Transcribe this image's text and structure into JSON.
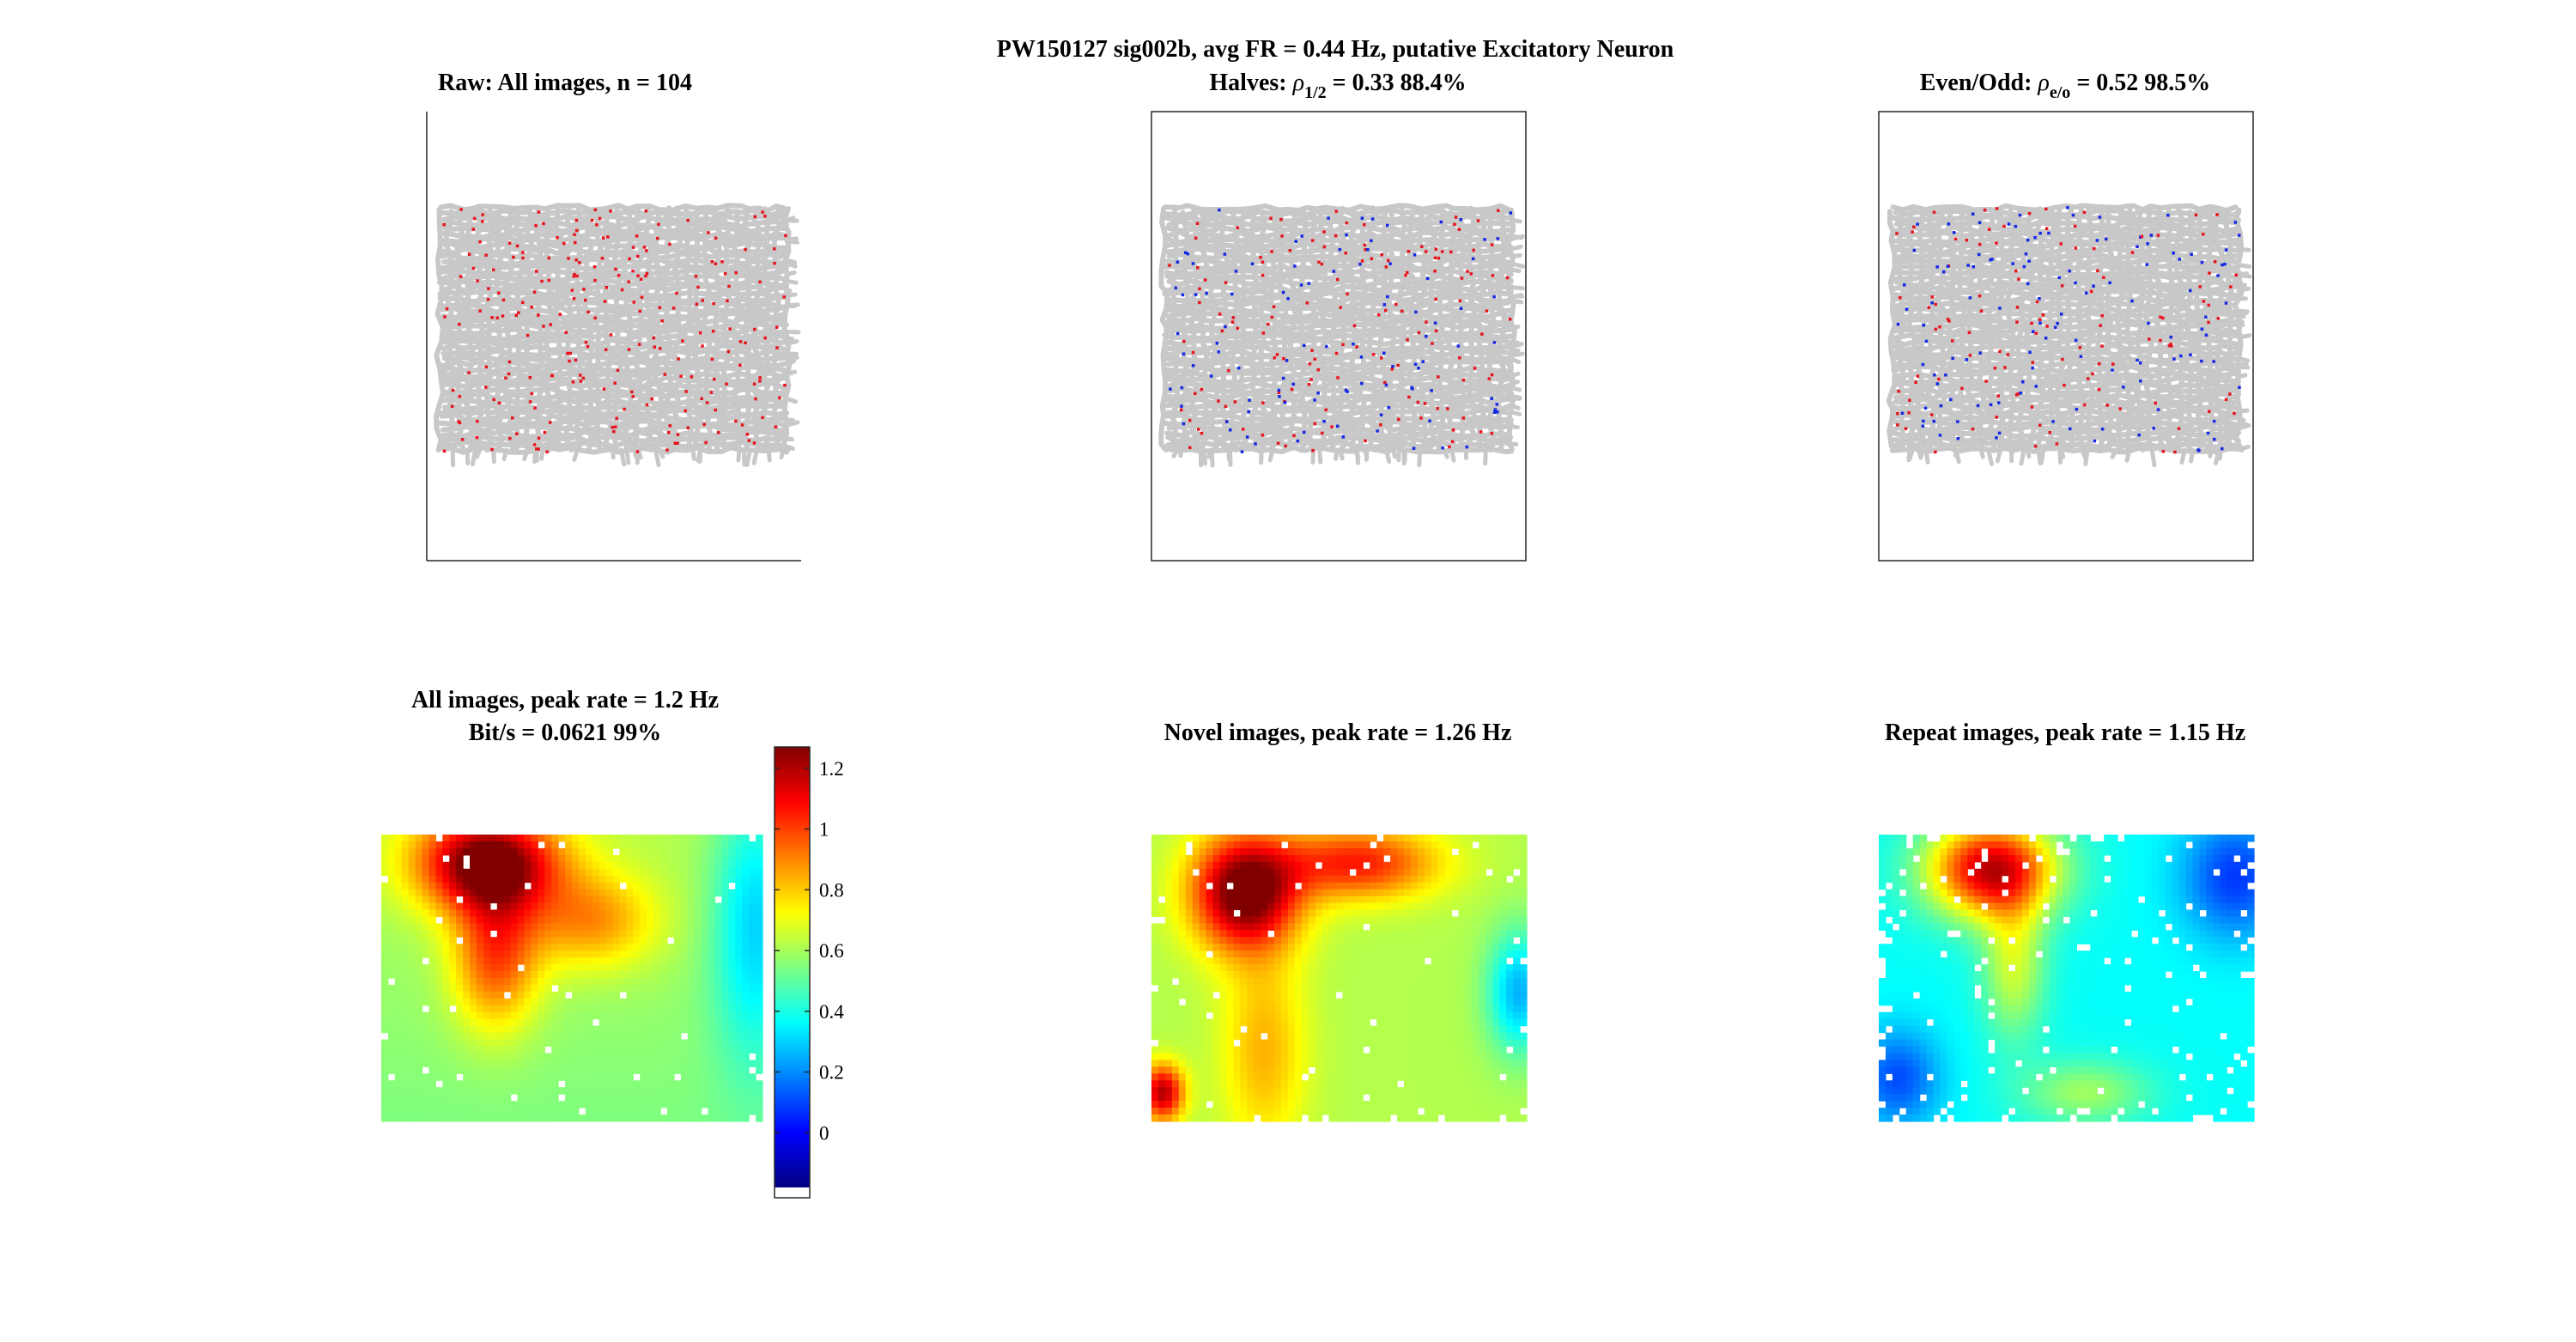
{
  "figure": {
    "suptitle": "PW150127  sig002b, avg FR = 0.44 Hz, putative Excitatory Neuron"
  },
  "panels": {
    "raw_all": {
      "title": "Raw: All images, n = 104"
    },
    "halves": {
      "title_prefix": "Halves: ",
      "rho": "ρ",
      "sub": "1/2",
      "title_suffix": " = 0.33 88.4%"
    },
    "even_odd": {
      "title_prefix": "Even/Odd: ",
      "rho": "ρ",
      "sub": "e/o",
      "title_suffix": " = 0.52 98.5%"
    },
    "all_map": {
      "title_line1": "All images, peak rate = 1.2 Hz",
      "title_line2": "Bit/s = 0.0621 99%"
    },
    "novel_map": {
      "title": "Novel images, peak rate = 1.26 Hz"
    },
    "repeat_map": {
      "title": "Repeat images, peak rate = 1.15 Hz"
    }
  },
  "colors": {
    "trajectory": "#c8c8c8",
    "spike_red": "#e8141e",
    "spike_blue": "#1428e6",
    "axis": "#262626"
  },
  "chart_data": [
    {
      "type": "scatter",
      "panel": "raw_all",
      "title": "Raw: All images, n = 104",
      "series": [
        {
          "role": "trajectory",
          "color": "gray"
        },
        {
          "role": "spikes",
          "color": "red"
        }
      ],
      "grid": false
    },
    {
      "type": "scatter",
      "panel": "halves",
      "title": "Halves: ρ1/2 = 0.33 88.4%",
      "series": [
        {
          "role": "trajectory",
          "color": "gray"
        },
        {
          "role": "spikes first half",
          "color": "blue"
        },
        {
          "role": "spikes second half",
          "color": "red"
        }
      ],
      "grid": false
    },
    {
      "type": "scatter",
      "panel": "even_odd",
      "title": "Even/Odd: ρe/o = 0.52 98.5%",
      "series": [
        {
          "role": "trajectory",
          "color": "gray"
        },
        {
          "role": "spikes even",
          "color": "blue"
        },
        {
          "role": "spikes odd",
          "color": "red"
        }
      ],
      "grid": false
    },
    {
      "type": "heatmap",
      "panel": "all_map",
      "title": "All images, peak rate = 1.2 Hz",
      "subtitle": "Bit/s = 0.0621 99%",
      "peak": 1.2,
      "hotspot": "top-left"
    },
    {
      "type": "heatmap",
      "panel": "novel_map",
      "title": "Novel images, peak rate = 1.26 Hz",
      "peak": 1.26,
      "hotspot": "top-left"
    },
    {
      "type": "heatmap",
      "panel": "repeat_map",
      "title": "Repeat images, peak rate = 1.15 Hz",
      "peak": 1.15,
      "hotspot": "top-left"
    },
    {
      "type": "colorbar",
      "colormap": "jet",
      "range": [
        -0.18,
        1.27
      ],
      "ticks": [
        "1.2",
        "1",
        "0.8",
        "0.6",
        "0.4",
        "0.2",
        "0"
      ],
      "tick_values": [
        1.2,
        1.0,
        0.8,
        0.6,
        0.4,
        0.2,
        0.0
      ]
    }
  ]
}
